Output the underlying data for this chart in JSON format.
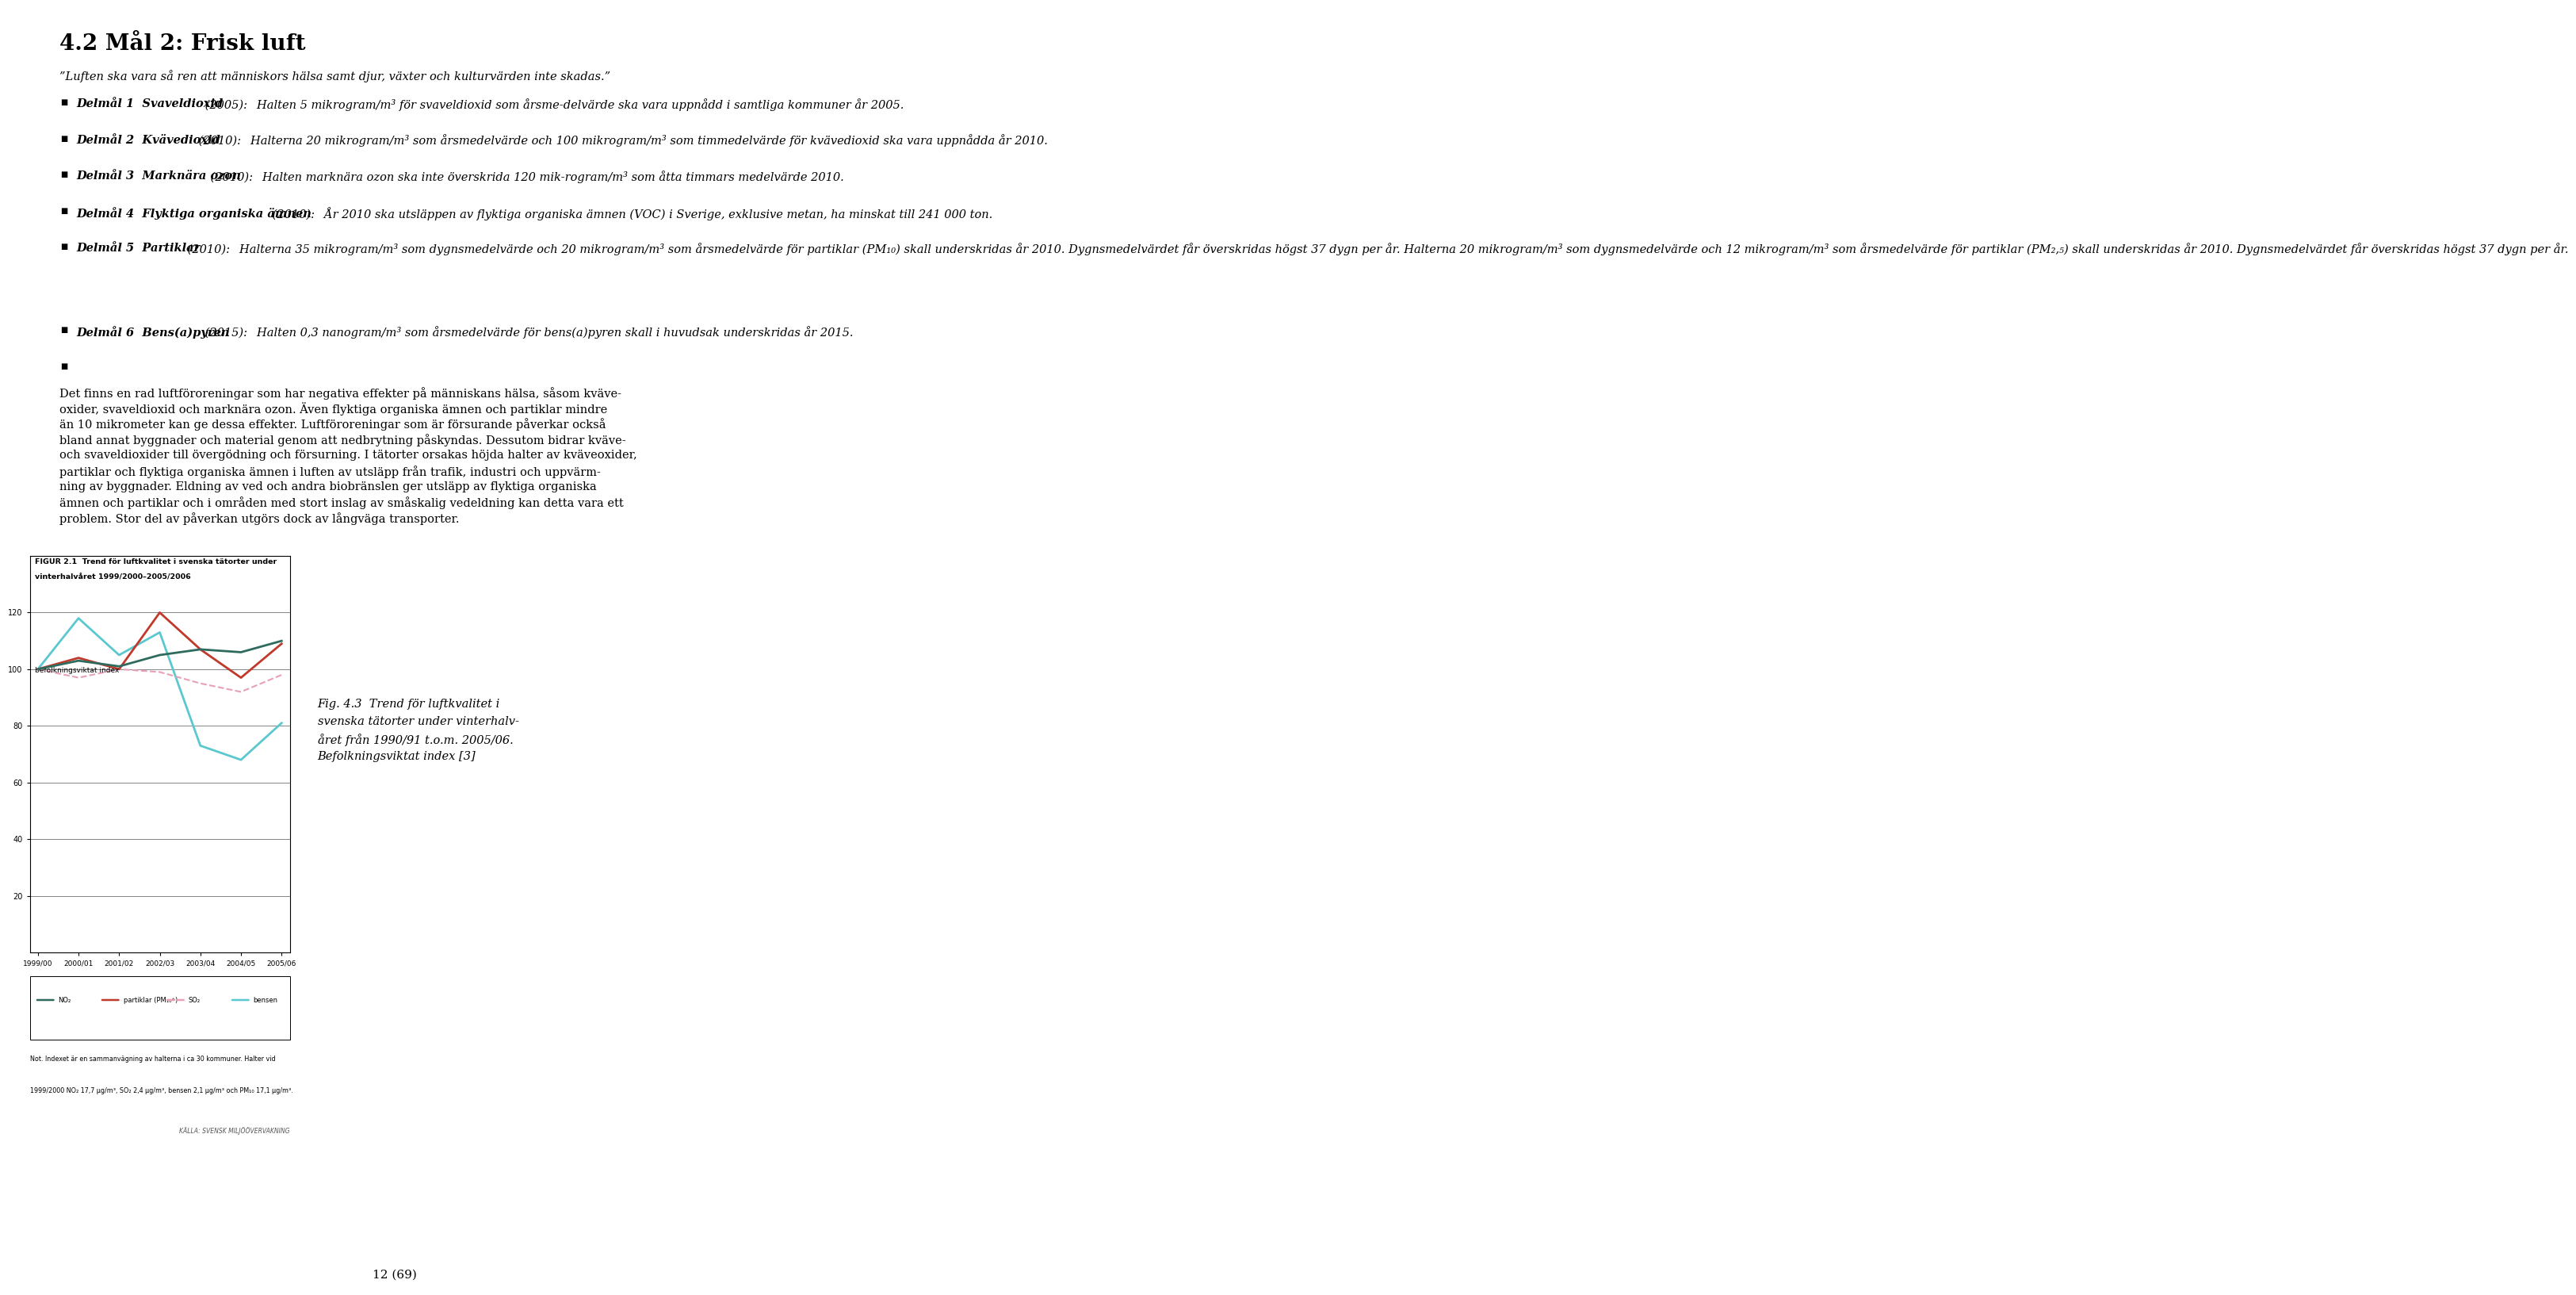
{
  "page_width": 9.6,
  "page_height": 16.13,
  "background": "#ffffff",
  "heading": "4.2 Mål 2: Frisk luft",
  "quote": "”Luften ska vara så ren att människors hälsa samt djur, växter och kulturvärden inte skadas.”",
  "bullets": [
    [
      "Delmål 1  Svaveldioxid",
      " (2005):  Halten 5 mikrogram/m³ för svaveldioxid som årsme-delvärde ska vara uppnådd i samtliga kommuner år 2005."
    ],
    [
      "Delmål 2  Kvävedioxid",
      " (2010):  Halterna 20 mikrogram/m³ som årsmedelvärde och 100 mikrogram/m³ som timmedelvärde för kvävedioxid ska vara uppnådda år 2010."
    ],
    [
      "Delmål 3  Marknära ozon",
      " (2010):  Halten marknära ozon ska inte överskrida 120 mik-rogram/m³ som åtta timmars medelvärde 2010."
    ],
    [
      "Delmål 4  Flyktiga organiska ämnen",
      " (2010):  År 2010 ska utsläppen av flyktiga organiska ämnen (VOC) i Sverige, exklusive metan, ha minskat till 241 000 ton."
    ],
    [
      "Delmål 5  Partiklar",
      " (2010):  Halterna 35 mikrogram/m³ som dygnsmedelvärde och 20 mikrogram/m³ som årsmedelvärde för partiklar (PM₁₀) skall underskridas år 2010. Dygnsmedelvärdet får överskridas högst 37 dygn per år. Halterna 20 mikrogram/m³ som dygnsmedelvärde och 12 mikrogram/m³ som årsmedelvärde för partiklar (PM₂,₅) skall underskridas år 2010. Dygnsmedelvärdet får överskridas högst 37 dygn per år."
    ],
    [
      "Delmål 6  Bens(a)pyren",
      " (2015):  Halten 0,3 nanogram/m³ som årsmedelvärde för bens(a)pyren skall i huvudsak underskridas år 2015."
    ]
  ],
  "body_lines": [
    "Det finns en rad luftföroreningar som har negativa effekter på människans hälsa, såsom kväve-",
    "oxider, svaveldioxid och marknära ozon. Även flyktiga organiska ämnen och partiklar mindre",
    "än 10 mikrometer kan ge dessa effekter. Luftföroreningar som är försurande påverkar också",
    "bland annat byggnader och material genom att nedbrytning påskyndas. Dessutom bidrar kväve-",
    "och svaveldioxider till övergödning och försurning. I tätorter orsakas höjda halter av kväveoxider,",
    "partiklar och flyktiga organiska ämnen i luften av utsläpp från trafik, industri och uppvärm-",
    "ning av byggnader. Eldning av ved och andra biobränslen ger utsläpp av flyktiga organiska",
    "ämnen och partiklar och i områden med stort inslag av småskalig vedeldning kan detta vara ett",
    "problem. Stor del av påverkan utgörs dock av långväga transporter."
  ],
  "fig_title_line1": "FIGUR 2.1  Trend för luftkvalitet i svenska tätorter under",
  "fig_title_line2": "vinterhalvåret 1999/2000–2005/2006",
  "fig_ylabel": "befolkningsviktat index",
  "fig_yticks": [
    20,
    40,
    60,
    80,
    100,
    120
  ],
  "fig_xticks": [
    "1999/00",
    "2000/01",
    "2001/02",
    "2002/03",
    "2003/04",
    "2004/05",
    "2005/06"
  ],
  "series_NO2": {
    "color": "#2e6b5e",
    "values": [
      100,
      103,
      101,
      105,
      107,
      106,
      110
    ],
    "ls": "solid",
    "lw": 2.0
  },
  "series_partiklar": {
    "color": "#c0392b",
    "values": [
      100,
      104,
      100,
      120,
      107,
      97,
      109
    ],
    "ls": "solid",
    "lw": 2.0
  },
  "series_SO2": {
    "color": "#e8a0b4",
    "values": [
      100,
      97,
      100,
      99,
      95,
      92,
      98
    ],
    "ls": "dashed",
    "lw": 1.5
  },
  "series_bensen": {
    "color": "#5bc8d0",
    "values": [
      100,
      118,
      105,
      113,
      73,
      68,
      81
    ],
    "ls": "solid",
    "lw": 2.0
  },
  "fig_note1": "Not. Indexet är en sammanvägning av halterna i ca 30 kommuner. Halter vid",
  "fig_note2": "1999/2000 NO₂ 17,7 μg/m³, SO₂ 2,4 μg/m³, bensen 2,1 μg/m³ och PM₁₀ 17,1 μg/m³.",
  "fig_source": "KÄLLA: SVENSK MILJÖÖVERVAKNING",
  "fig_caption_lines": [
    "Fig. 4.3  Trend för luftkvalitet i",
    "svenska tätorter under vinterhalv-",
    "året från 1990/91 t.o.m. 2005/06.",
    "Befolkningsviktat index [3]"
  ],
  "page_number": "12 (69)"
}
